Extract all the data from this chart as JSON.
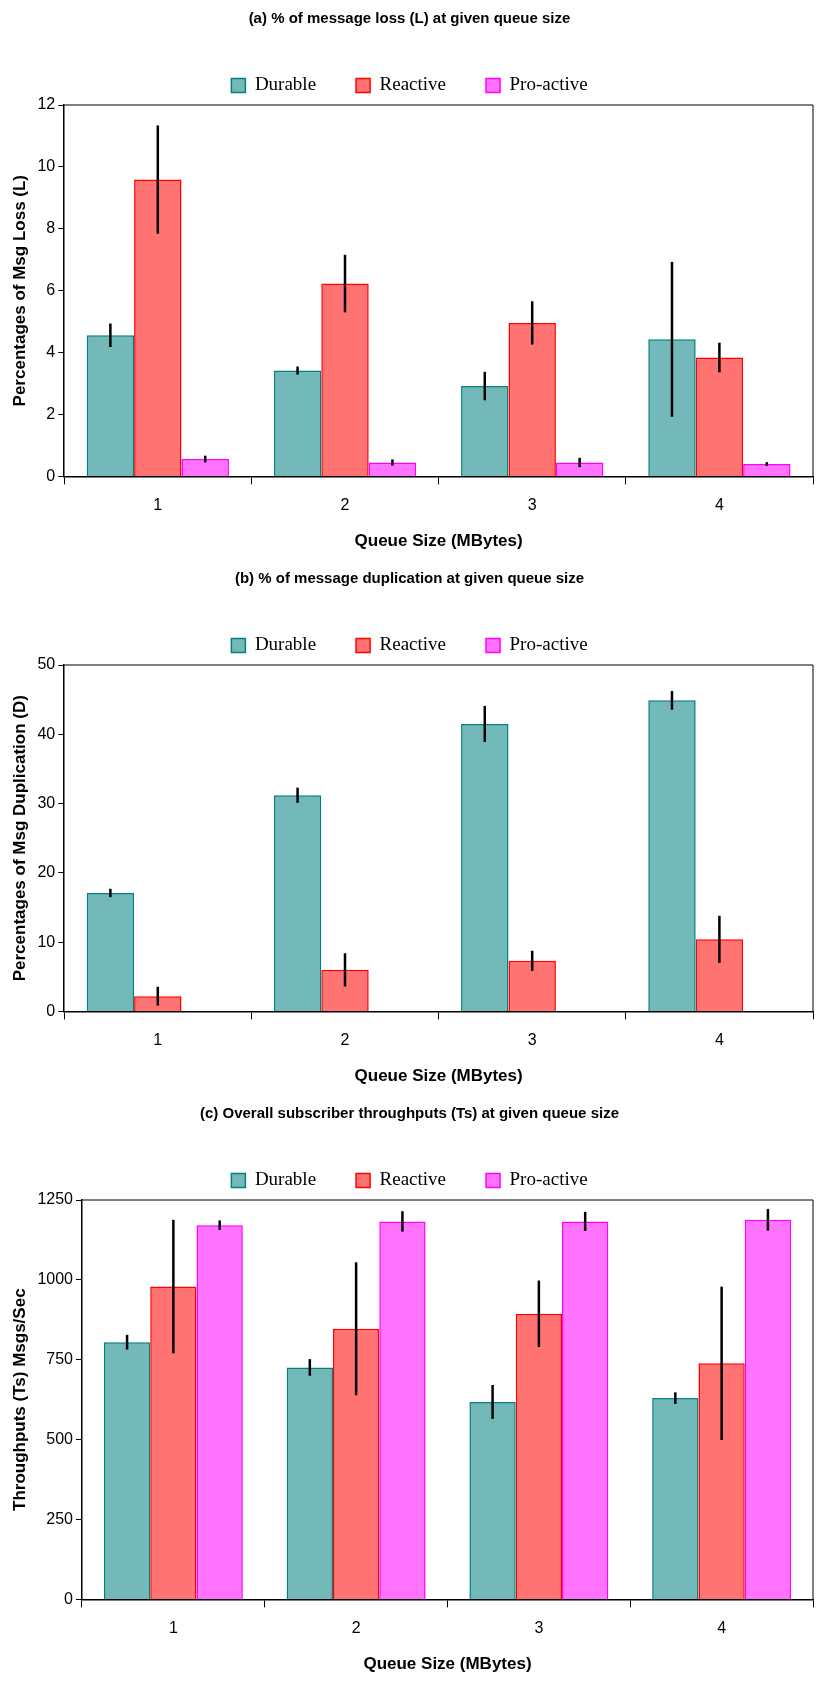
{
  "chart_data": [
    {
      "type": "bar",
      "title": "(a) % of message loss (L) at given queue size",
      "xlabel": "Queue Size (MBytes)",
      "ylabel": "Percentages of Msg Loss (L)",
      "categories": [
        "1",
        "2",
        "3",
        "4"
      ],
      "ylim": [
        0,
        12
      ],
      "yticks": [
        0,
        2,
        4,
        6,
        8,
        10,
        12
      ],
      "grid": false,
      "legend": "top",
      "series": [
        {
          "name": "Durable",
          "color": "#008080",
          "values": [
            4.56,
            3.42,
            2.92,
            4.43
          ],
          "errors": [
            0.38,
            0.13,
            0.46,
            2.5
          ]
        },
        {
          "name": "Reactive",
          "color": "#ff0000",
          "values": [
            9.59,
            6.23,
            4.96,
            3.84
          ],
          "errors": [
            1.75,
            0.93,
            0.7,
            0.48
          ]
        },
        {
          "name": "Pro-active",
          "color": "#ff00ff",
          "values": [
            0.56,
            0.45,
            0.45,
            0.4
          ],
          "errors": [
            0.11,
            0.1,
            0.15,
            0.06
          ]
        }
      ]
    },
    {
      "type": "bar",
      "title": "(b) % of message duplication at given queue size",
      "xlabel": "Queue Size (MBytes)",
      "ylabel": "Percentages of Msg Duplication (D)",
      "categories": [
        "1",
        "2",
        "3",
        "4"
      ],
      "ylim": [
        0,
        50
      ],
      "yticks": [
        0,
        10,
        20,
        30,
        40,
        50
      ],
      "grid": false,
      "legend": "top",
      "series": [
        {
          "name": "Durable",
          "color": "#008080",
          "values": [
            17.1,
            31.2,
            41.5,
            44.9
          ],
          "errors": [
            0.6,
            1.1,
            2.6,
            1.35
          ]
        },
        {
          "name": "Reactive",
          "color": "#ff0000",
          "values": [
            2.2,
            6.0,
            7.3,
            10.4
          ],
          "errors": [
            1.35,
            2.4,
            1.45,
            3.4
          ]
        },
        {
          "name": "Pro-active",
          "color": "#ff00ff",
          "values": [
            null,
            null,
            null,
            null
          ]
        }
      ]
    },
    {
      "type": "bar",
      "title": "(c) Overall subscriber throughputs (Ts) at given queue size",
      "xlabel": "Queue Size (MBytes)",
      "ylabel": "Throughputs (Ts) Msgs/Sec",
      "categories": [
        "1",
        "2",
        "3",
        "4"
      ],
      "ylim": [
        0,
        1250
      ],
      "yticks": [
        0,
        250,
        500,
        750,
        1000,
        1250
      ],
      "grid": false,
      "legend": "top",
      "series": [
        {
          "name": "Durable",
          "color": "#008080",
          "values": [
            805,
            726,
            618,
            630
          ],
          "errors": [
            23,
            26,
            53,
            18
          ]
        },
        {
          "name": "Reactive",
          "color": "#ff0000",
          "values": [
            979,
            847,
            894,
            739
          ],
          "errors": [
            209,
            208,
            104,
            240
          ]
        },
        {
          "name": "Pro-active",
          "color": "#ff00ff",
          "values": [
            1171,
            1183,
            1183,
            1188
          ],
          "errors": [
            15,
            32,
            30,
            34
          ]
        }
      ]
    }
  ]
}
